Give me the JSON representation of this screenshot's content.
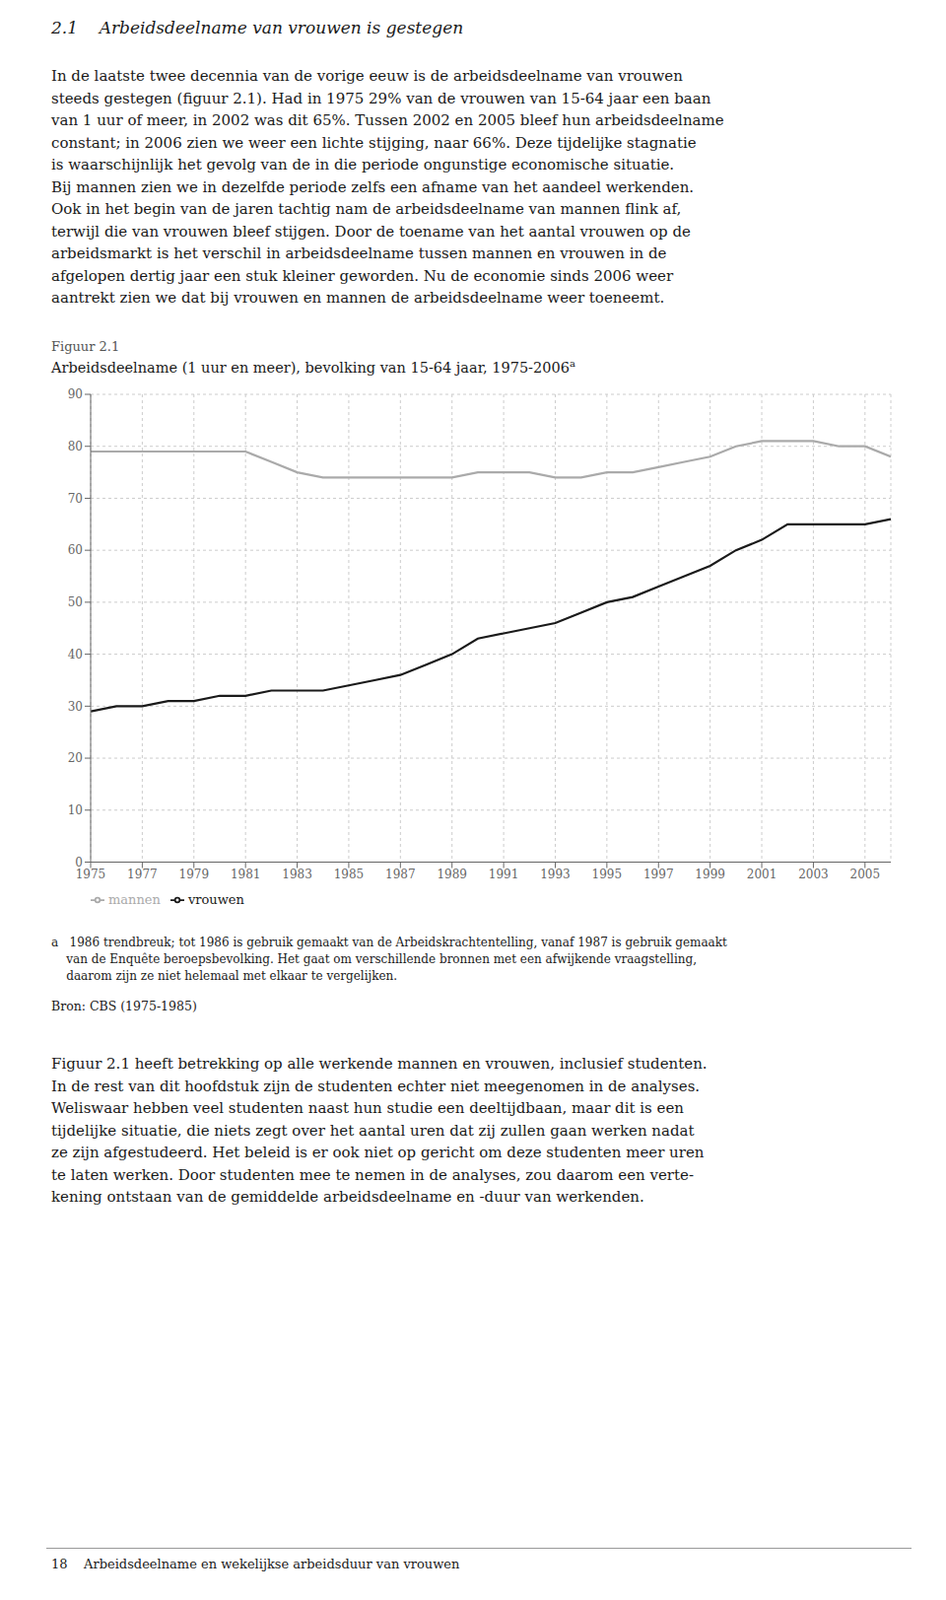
{
  "section_title": "2.1    Arbeidsdeelname van vrouwen is gestegen",
  "paragraphs": [
    [
      "In de laatste twee decennia van de vorige eeuw is de arbeidsdeelname van vrouwen",
      "steeds gestegen (figuur 2.1). Had in 1975 29% van de vrouwen van 15-64 jaar een baan",
      "van 1 uur of meer, in 2002 was dit 65%. Tussen 2002 en 2005 bleef hun arbeidsdeelname",
      "constant; in 2006 zien we weer een lichte stijging, naar 66%. Deze tijdelijke stagnatie",
      "is waarschijnlijk het gevolg van de in die periode ongunstige economische situatie.",
      "Bij mannen zien we in dezelfde periode zelfs een afname van het aandeel werkenden.",
      "Ook in het begin van de jaren tachtig nam de arbeidsdeelname van mannen flink af,",
      "terwijl die van vrouwen bleef stijgen. Door de toename van het aantal vrouwen op de",
      "arbeidsmarkt is het verschil in arbeidsdeelname tussen mannen en vrouwen in de",
      "afgelopen dertig jaar een stuk kleiner geworden. Nu de economie sinds 2006 weer",
      "aantrekt zien we dat bij vrouwen en mannen de arbeidsdeelname weer toeneemt."
    ],
    [
      "Figuur 2.1 heeft betrekking op alle werkende mannen en vrouwen, inclusief studenten.",
      "In de rest van dit hoofdstuk zijn de studenten echter niet meegenomen in de analyses.",
      "Weliswaar hebben veel studenten naast hun studie een deeltijdbaan, maar dit is een",
      "tijdelijke situatie, die niets zegt over het aantal uren dat zij zullen gaan werken nadat",
      "ze zijn afgestudeerd. Het beleid is er ook niet op gericht om deze studenten meer uren",
      "te laten werken. Door studenten mee te nemen in de analyses, zou daarom een verte-",
      "kening ontstaan van de gemiddelde arbeidsdeelname en -duur van werkenden."
    ]
  ],
  "figure_label": "Figuur 2.1",
  "footnotes": [
    "a   1986 trendbreuk; tot 1986 is gebruik gemaakt van de Arbeidskrachtentelling, vanaf 1987 is gebruik gemaakt",
    "    van de Enquête beroepsbevolking. Het gaat om verschillende bronnen met een afwijkende vraagstelling,",
    "    daarom zijn ze niet helemaal met elkaar te vergelijken."
  ],
  "source": "Bron: CBS (1975-1985)",
  "footer": "18    Arbeidsdeelname en wekelijkse arbeidsduur van vrouwen",
  "chart_data": {
    "type": "line",
    "title": "Arbeidsdeelname (1 uur en meer), bevolking van 15-64 jaar, 1975-2006",
    "title_superscript": "a",
    "x": [
      1975,
      1976,
      1977,
      1978,
      1979,
      1980,
      1981,
      1982,
      1983,
      1984,
      1985,
      1986,
      1987,
      1988,
      1989,
      1990,
      1991,
      1992,
      1993,
      1994,
      1995,
      1996,
      1997,
      1998,
      1999,
      2000,
      2001,
      2002,
      2003,
      2004,
      2005,
      2006
    ],
    "series": [
      {
        "name": "mannen",
        "color": "#aaaaaa",
        "values": [
          79,
          79,
          79,
          79,
          79,
          79,
          79,
          77,
          75,
          74,
          74,
          74,
          74,
          74,
          74,
          75,
          75,
          75,
          74,
          74,
          75,
          75,
          76,
          77,
          78,
          80,
          81,
          81,
          81,
          80,
          80,
          78
        ]
      },
      {
        "name": "vrouwen",
        "color": "#1a1a1a",
        "values": [
          29,
          30,
          30,
          31,
          31,
          32,
          32,
          33,
          33,
          33,
          34,
          35,
          36,
          38,
          40,
          43,
          44,
          45,
          46,
          48,
          50,
          51,
          53,
          55,
          57,
          60,
          62,
          65,
          65,
          65,
          65,
          66
        ]
      }
    ],
    "xlim": [
      1975,
      2006
    ],
    "xticks": [
      1975,
      1977,
      1979,
      1981,
      1983,
      1985,
      1987,
      1989,
      1991,
      1993,
      1995,
      1997,
      1999,
      2001,
      2003,
      2005
    ],
    "ylim": [
      0,
      90
    ],
    "yticks": [
      0,
      10,
      20,
      30,
      40,
      50,
      60,
      70,
      80,
      90
    ],
    "grid": true,
    "legend": "lower left"
  }
}
